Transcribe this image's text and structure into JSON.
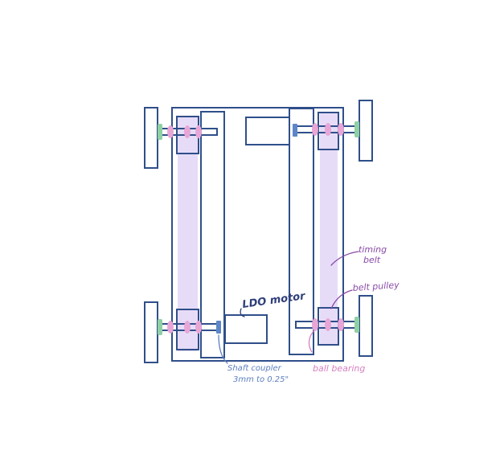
{
  "labels": {
    "motor": "LDO motor",
    "timing_belt_line1": "timing",
    "timing_belt_line2": "belt",
    "belt_pulley": "belt pulley",
    "ball_bearing": "ball bearing",
    "shaft_coupler_line1": "Shaft coupler",
    "shaft_coupler_line2": "3mm to 0.25\""
  },
  "colors": {
    "frame": "#2f4f8a",
    "belt": "#e6dcf8",
    "bearing": "#e8a6d6",
    "hub": "#8fd0a4",
    "coupler": "#5c86c8",
    "label_purple": "#8a4aa8",
    "label_blue": "#5c7fbf",
    "label_pink": "#d77fc0",
    "label_navy": "#2f3f7a"
  }
}
